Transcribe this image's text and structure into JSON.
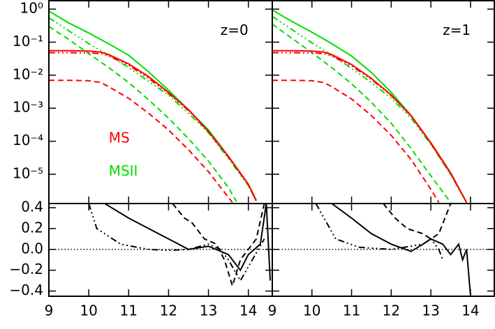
{
  "chart_data": [
    {
      "type": "line",
      "log_y": true,
      "xlim": [
        9,
        14.6
      ],
      "ylim": [
        1.3e-06,
        1.8
      ],
      "xticks": [
        9,
        10,
        11,
        12,
        13,
        14
      ],
      "show_xtick_labels": false,
      "yticks": [
        {
          "value": 1,
          "label": "10⁰"
        },
        {
          "value": 0.1,
          "label": "10⁻¹"
        },
        {
          "value": 0.01,
          "label": "10⁻²"
        },
        {
          "value": 0.001,
          "label": "10⁻³"
        },
        {
          "value": 0.0001,
          "label": "10⁻⁴"
        },
        {
          "value": 1e-05,
          "label": "10⁻⁵"
        }
      ],
      "show_ytick_labels": true,
      "annotations": [
        {
          "text": "z=0",
          "x": 13.3,
          "y": 0.22,
          "color": "#000000"
        },
        {
          "text": "MS",
          "x": 10.5,
          "y": 0.00012,
          "color": "#ff0000"
        },
        {
          "text": "MSII",
          "x": 10.5,
          "y": 1.2e-05,
          "color": "#00dd00"
        }
      ],
      "series": [
        {
          "color": "#00dd00",
          "dash": "solid",
          "x": [
            9,
            9.5,
            10,
            10.5,
            11,
            11.5,
            12,
            12.5,
            13,
            13.5,
            14,
            14.2
          ],
          "values": [
            0.87,
            0.38,
            0.19,
            0.089,
            0.04,
            0.0126,
            0.0035,
            0.00089,
            0.00022,
            3.5e-05,
            5e-06,
            1.6e-06
          ]
        },
        {
          "color": "#00dd00",
          "dash": "dashdot",
          "x": [
            9,
            9.5,
            10,
            10.5,
            11,
            11.5,
            12,
            12.5,
            13,
            13.5,
            14,
            14.2
          ],
          "values": [
            0.55,
            0.22,
            0.09,
            0.04,
            0.017,
            0.0065,
            0.0025,
            0.0007,
            0.00018,
            3e-05,
            4.5e-06,
            1.5e-06
          ]
        },
        {
          "color": "#00dd00",
          "dash": "dashed",
          "x": [
            9,
            9.5,
            10,
            10.5,
            11,
            11.5,
            12,
            12.5,
            13,
            13.5,
            13.7
          ],
          "values": [
            0.3,
            0.12,
            0.045,
            0.017,
            0.006,
            0.0018,
            0.0005,
            0.00012,
            2.5e-05,
            4e-06,
            1.5e-06
          ]
        },
        {
          "color": "#ff0000",
          "dash": "solid",
          "x": [
            9,
            9.5,
            10,
            10.3,
            10.5,
            11,
            11.5,
            12,
            12.5,
            13,
            13.5,
            14,
            14.2
          ],
          "values": [
            0.055,
            0.055,
            0.054,
            0.05,
            0.042,
            0.022,
            0.009,
            0.003,
            0.0009,
            0.0002,
            3.5e-05,
            5e-06,
            1.6e-06
          ]
        },
        {
          "color": "#ff0000",
          "dash": "dashdot",
          "x": [
            9,
            9.5,
            10,
            10.3,
            10.5,
            11,
            11.5,
            12,
            12.5,
            13,
            13.5,
            14,
            14.2
          ],
          "values": [
            0.048,
            0.048,
            0.047,
            0.045,
            0.038,
            0.02,
            0.008,
            0.0028,
            0.00085,
            0.00019,
            3.3e-05,
            4.8e-06,
            1.5e-06
          ]
        },
        {
          "color": "#ff0000",
          "dash": "dashed",
          "x": [
            9,
            9.5,
            10,
            10.3,
            10.5,
            11,
            11.5,
            12,
            12.5,
            13,
            13.5,
            13.6
          ],
          "values": [
            0.007,
            0.007,
            0.0068,
            0.006,
            0.0045,
            0.002,
            0.0007,
            0.00022,
            5.5e-05,
            1.2e-05,
            2e-06,
            1.4e-06
          ]
        }
      ]
    },
    {
      "type": "line",
      "log_y": true,
      "xlim": [
        9,
        14.6
      ],
      "ylim": [
        1.3e-06,
        1.8
      ],
      "xticks": [
        9,
        10,
        11,
        12,
        13,
        14
      ],
      "show_xtick_labels": false,
      "yticks": [
        1,
        0.1,
        0.01,
        0.001,
        0.0001,
        1e-05
      ],
      "show_ytick_labels": false,
      "annotations": [
        {
          "text": "z=1",
          "x": 13.3,
          "y": 0.22,
          "color": "#000000"
        }
      ],
      "series": [
        {
          "color": "#00dd00",
          "dash": "solid",
          "x": [
            9,
            9.5,
            10,
            10.5,
            11,
            11.5,
            12,
            12.5,
            13,
            13.5,
            13.9
          ],
          "values": [
            0.95,
            0.42,
            0.2,
            0.09,
            0.038,
            0.012,
            0.003,
            0.0006,
            9e-05,
            1.1e-05,
            1.4e-06
          ]
        },
        {
          "color": "#00dd00",
          "dash": "dashdot",
          "x": [
            9,
            9.5,
            10,
            10.5,
            11,
            11.5,
            12,
            12.5,
            13,
            13.5,
            13.9
          ],
          "values": [
            0.6,
            0.24,
            0.095,
            0.04,
            0.016,
            0.006,
            0.002,
            0.0005,
            8e-05,
            1e-05,
            1.4e-06
          ]
        },
        {
          "color": "#00dd00",
          "dash": "dashed",
          "x": [
            9,
            9.5,
            10,
            10.5,
            11,
            11.5,
            12,
            12.5,
            13,
            13.5
          ],
          "values": [
            0.35,
            0.13,
            0.048,
            0.017,
            0.0055,
            0.0015,
            0.00035,
            6e-05,
            9e-06,
            1.4e-06
          ]
        },
        {
          "color": "#ff0000",
          "dash": "solid",
          "x": [
            9,
            9.5,
            10,
            10.3,
            10.5,
            11,
            11.5,
            12,
            12.5,
            13,
            13.5,
            13.9
          ],
          "values": [
            0.055,
            0.055,
            0.054,
            0.05,
            0.042,
            0.021,
            0.008,
            0.0025,
            0.0006,
            9e-05,
            1.1e-05,
            1.4e-06
          ]
        },
        {
          "color": "#ff0000",
          "dash": "dashdot",
          "x": [
            9,
            9.5,
            10,
            10.3,
            10.5,
            11,
            11.5,
            12,
            12.5,
            13,
            13.5,
            13.9
          ],
          "values": [
            0.048,
            0.048,
            0.047,
            0.045,
            0.038,
            0.019,
            0.0075,
            0.0024,
            0.00058,
            8.5e-05,
            1e-05,
            1.4e-06
          ]
        },
        {
          "color": "#ff0000",
          "dash": "dashed",
          "x": [
            9,
            9.5,
            10,
            10.3,
            10.5,
            11,
            11.5,
            12,
            12.5,
            13,
            13.2
          ],
          "values": [
            0.007,
            0.007,
            0.0068,
            0.006,
            0.0045,
            0.0019,
            0.0006,
            0.00015,
            2.8e-05,
            3.5e-06,
            1.4e-06
          ]
        }
      ]
    },
    {
      "type": "line",
      "log_y": false,
      "xlim": [
        9,
        14.6
      ],
      "ylim": [
        -0.45,
        0.44
      ],
      "xticks": [
        9,
        10,
        11,
        12,
        13,
        14
      ],
      "show_xtick_labels": true,
      "yticks": [
        0.4,
        0.2,
        {
          "value": 0,
          "label": "0.0"
        },
        {
          "value": -0.2,
          "label": "−0.2"
        },
        {
          "value": -0.4,
          "label": "−0.4"
        }
      ],
      "show_ytick_labels": true,
      "hline": 0,
      "series": [
        {
          "color": "#000000",
          "dash": "solid",
          "x": [
            10.4,
            11,
            11.5,
            12,
            12.5,
            13,
            13.5,
            13.8,
            14,
            14.3,
            14.45,
            14.55
          ],
          "values": [
            0.44,
            0.3,
            0.2,
            0.1,
            0.0,
            0.03,
            -0.05,
            -0.2,
            -0.05,
            0.05,
            0.44,
            -0.3
          ]
        },
        {
          "color": "#000000",
          "dash": "dashed",
          "x": [
            12.1,
            12.4,
            12.6,
            12.9,
            13.2,
            13.4,
            13.6,
            13.8,
            14.2,
            14.4
          ],
          "values": [
            0.44,
            0.3,
            0.25,
            0.1,
            0.05,
            -0.1,
            -0.35,
            -0.1,
            0.1,
            0.44
          ]
        },
        {
          "color": "#000000",
          "dash": "dashdot",
          "x": [
            10,
            10.2,
            10.8,
            11.5,
            12,
            12.5,
            13,
            13.3,
            13.5,
            13.8,
            14.1,
            14.4
          ],
          "values": [
            0.44,
            0.2,
            0.05,
            0.0,
            -0.01,
            0.0,
            0.05,
            0.0,
            -0.1,
            -0.3,
            -0.1,
            0.1
          ]
        }
      ]
    },
    {
      "type": "line",
      "log_y": false,
      "xlim": [
        9,
        14.6
      ],
      "ylim": [
        -0.45,
        0.44
      ],
      "xticks": [
        9,
        10,
        11,
        12,
        13,
        14
      ],
      "show_xtick_labels": true,
      "yticks": [
        0.4,
        0.2,
        0,
        -0.2,
        -0.4
      ],
      "show_ytick_labels": false,
      "hline": 0,
      "series": [
        {
          "color": "#000000",
          "dash": "solid",
          "x": [
            10.5,
            11,
            11.5,
            12,
            12.5,
            12.8,
            13,
            13.3,
            13.5,
            13.7,
            13.8,
            13.9,
            14
          ],
          "values": [
            0.44,
            0.3,
            0.15,
            0.05,
            -0.02,
            0.05,
            0.1,
            0.05,
            -0.05,
            0.05,
            -0.1,
            0.0,
            -0.44
          ]
        },
        {
          "color": "#000000",
          "dash": "dashed",
          "x": [
            11.8,
            12.1,
            12.4,
            12.8,
            13,
            13.2,
            13.5
          ],
          "values": [
            0.44,
            0.3,
            0.2,
            0.15,
            0.1,
            0.15,
            0.44
          ]
        },
        {
          "color": "#000000",
          "dash": "dashdot",
          "x": [
            10.1,
            10.6,
            11.2,
            12,
            12.8,
            13,
            13.2,
            13.3
          ],
          "values": [
            0.44,
            0.1,
            0.02,
            0.0,
            0.05,
            0.1,
            0.0,
            -0.1
          ]
        }
      ]
    }
  ]
}
